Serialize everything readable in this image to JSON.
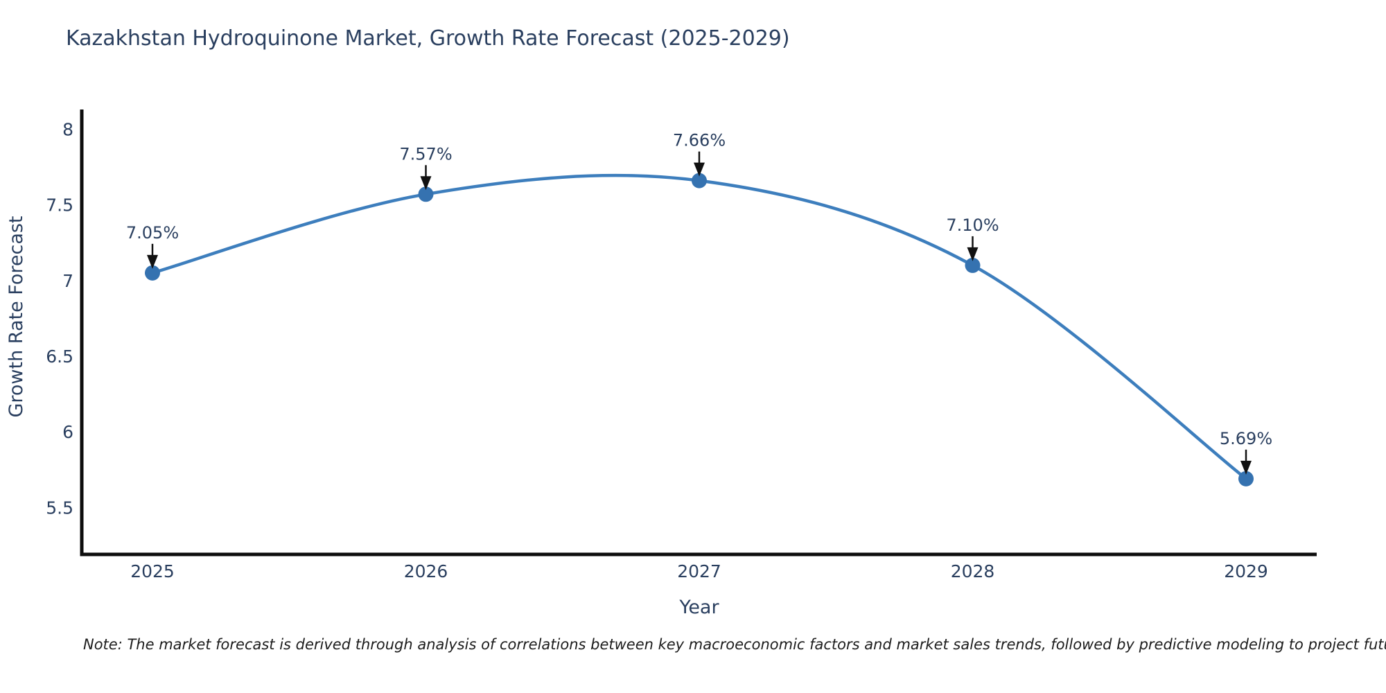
{
  "chart_data": {
    "type": "line",
    "title": "Kazakhstan Hydroquinone Market, Growth Rate Forecast (2025-2029)",
    "xlabel": "Year",
    "ylabel": "Growth Rate Forecast",
    "x": [
      2025,
      2026,
      2027,
      2028,
      2029
    ],
    "y": [
      7.05,
      7.57,
      7.66,
      7.1,
      5.69
    ],
    "point_labels": [
      "7.05%",
      "7.57%",
      "7.66%",
      "7.10%",
      "5.69%"
    ],
    "xtick_labels": [
      "2025",
      "2026",
      "2027",
      "2028",
      "2029"
    ],
    "ytick_values": [
      5.5,
      6,
      6.5,
      7,
      7.5,
      8
    ],
    "ytick_labels": [
      "5.5",
      "6",
      "6.5",
      "7",
      "7.5",
      "8"
    ],
    "ylim": [
      5.19,
      8.13
    ],
    "curve": "spline",
    "grid": false,
    "legend": false,
    "line_color": "#3d7ebd",
    "marker_color": "#3572b0",
    "axis_color": "#0d0d0d",
    "arrow_color": "#111111",
    "text_color": "#2a3f5f"
  },
  "note": "Note: The market forecast is derived through analysis of correlations between key macroeconomic factors and market sales trends, followed by predictive modeling to project future sales"
}
